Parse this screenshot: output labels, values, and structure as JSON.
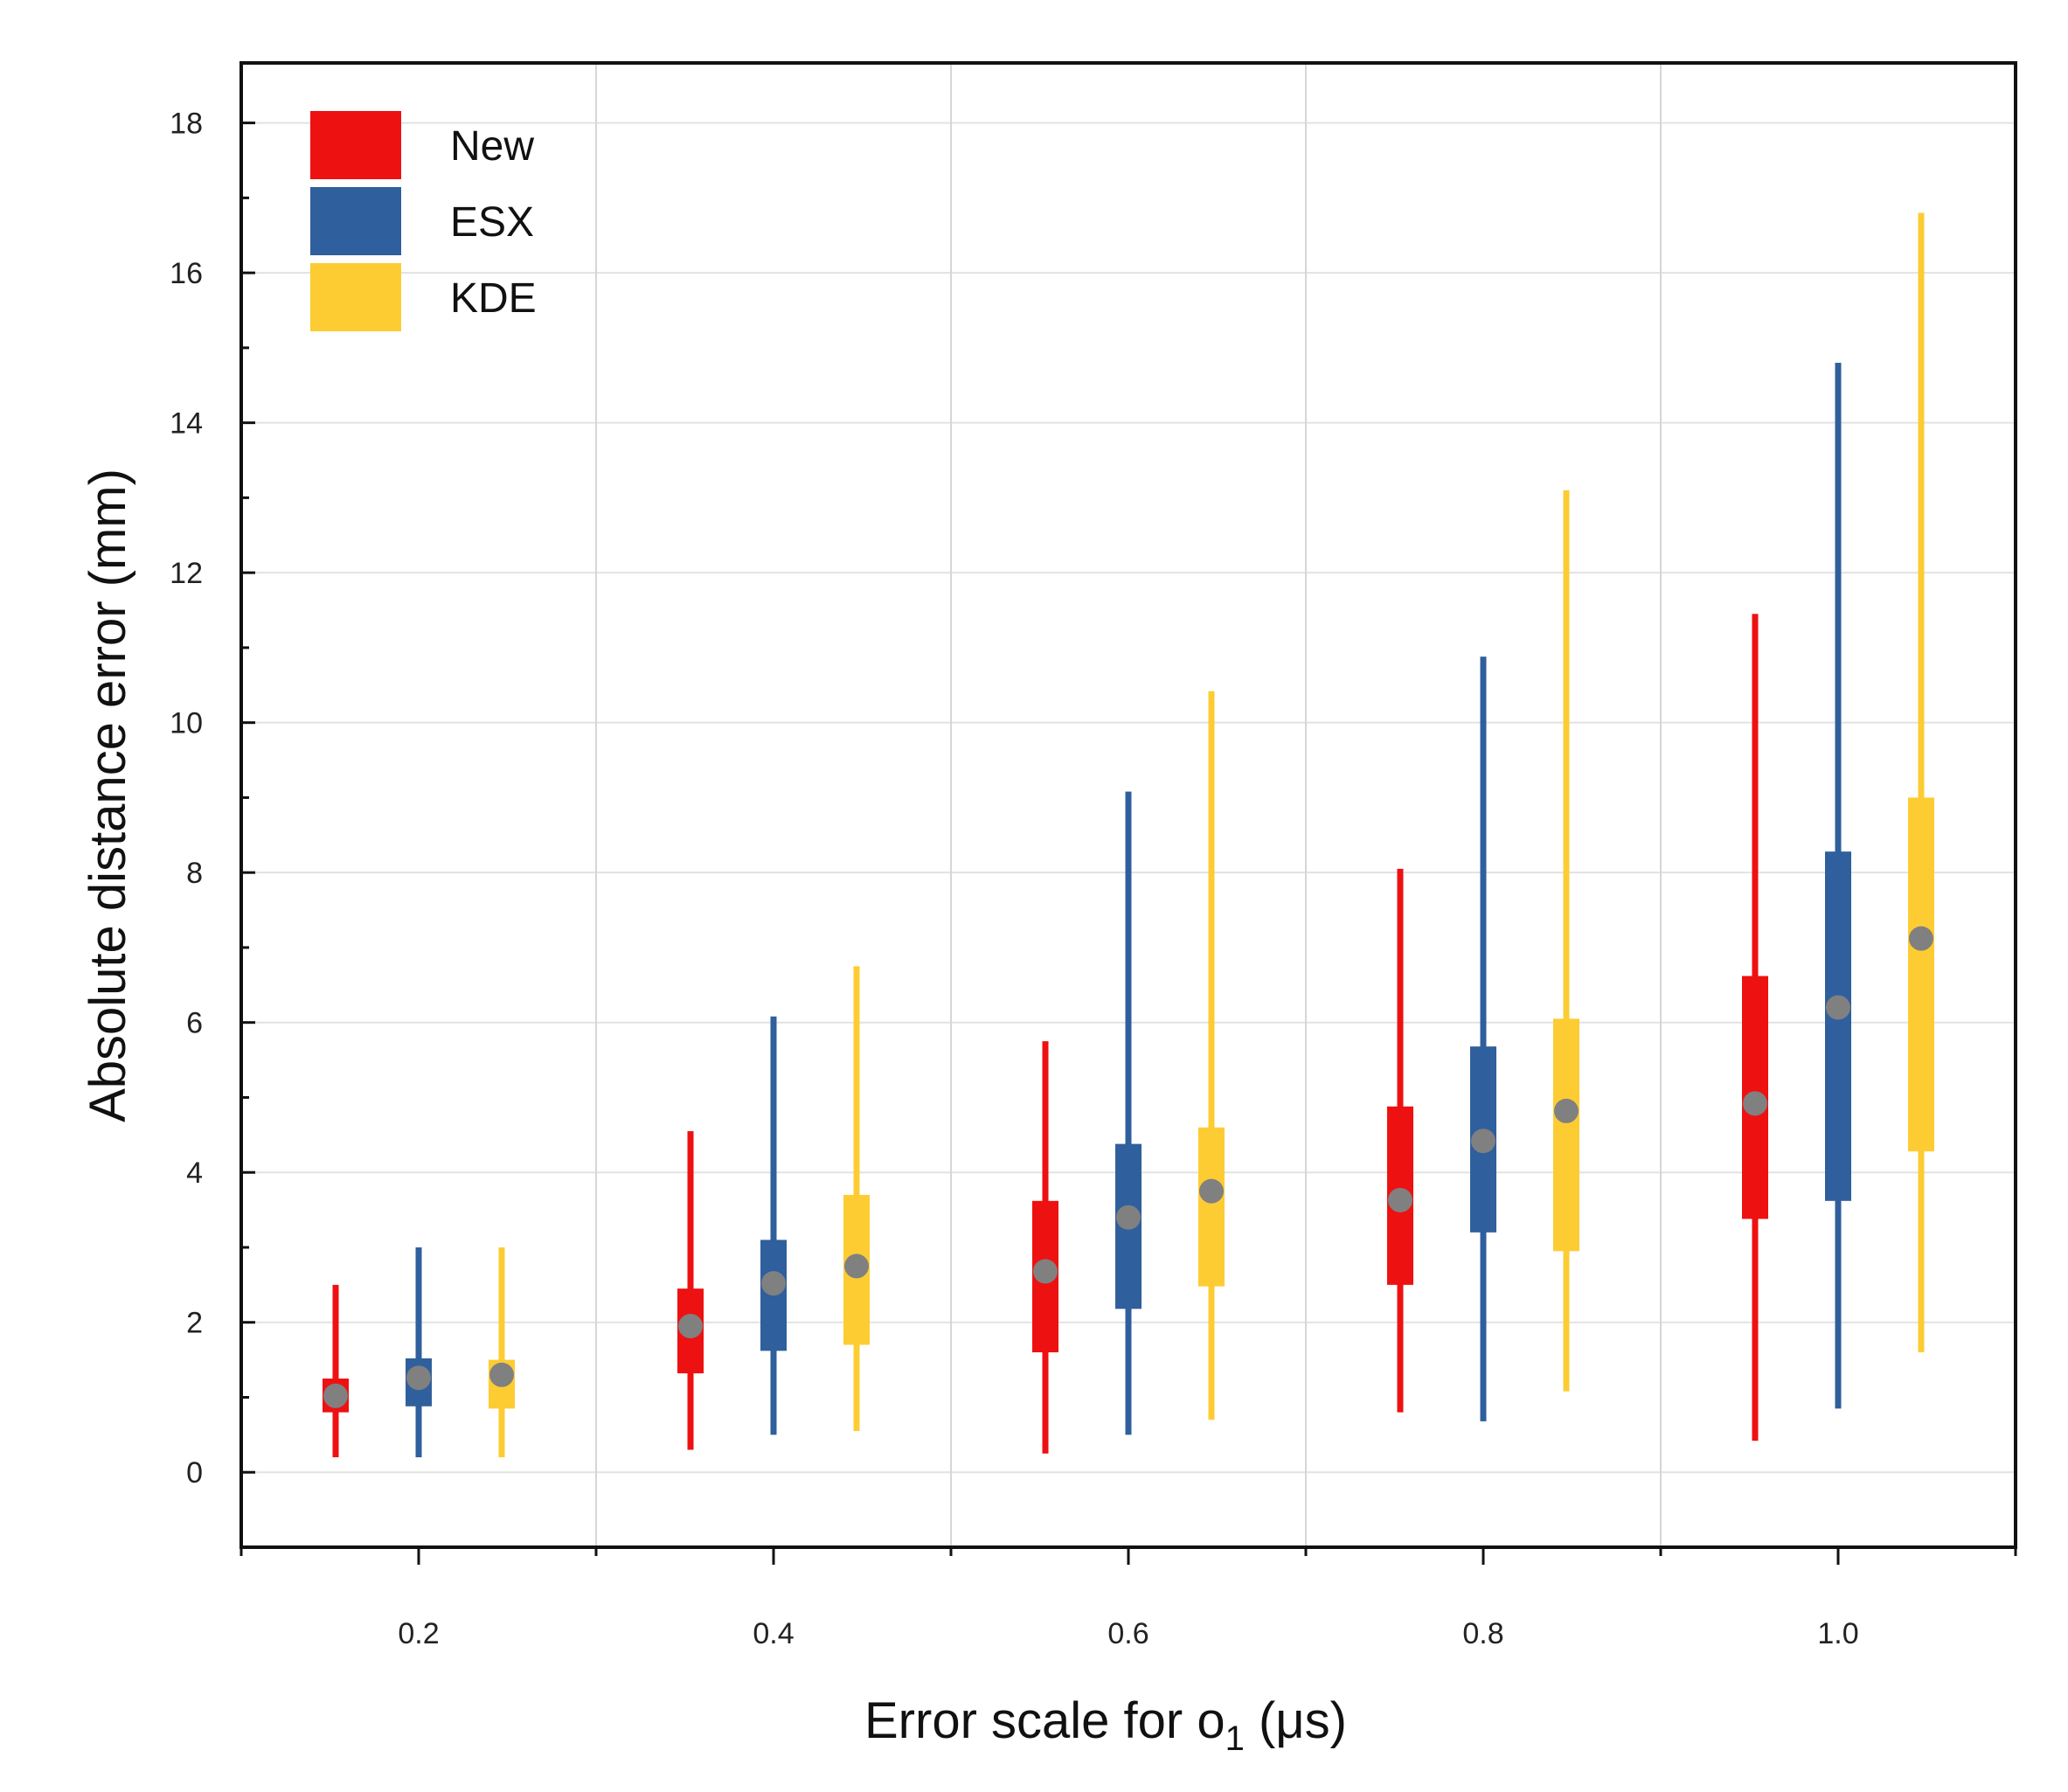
{
  "chart_data": {
    "type": "box",
    "xlabel": "Error scale for o",
    "xlabel_subscript": "1",
    "xlabel_unit": "(μs)",
    "ylabel": "Absolute distance error (mm)",
    "ylim": [
      -1,
      18.8
    ],
    "yticks": [
      0,
      2,
      4,
      6,
      8,
      10,
      12,
      14,
      16,
      18
    ],
    "categories": [
      "0.2",
      "0.4",
      "0.6",
      "0.8",
      "1.0"
    ],
    "grid": true,
    "legend_position": "top-left",
    "series": [
      {
        "name": "New",
        "color": "#ee1111",
        "boxes": [
          {
            "whisker_low": 0.2,
            "q1": 0.8,
            "mean": 1.02,
            "q3": 1.25,
            "whisker_high": 2.5
          },
          {
            "whisker_low": 0.3,
            "q1": 1.32,
            "mean": 1.95,
            "q3": 2.45,
            "whisker_high": 4.55
          },
          {
            "whisker_low": 0.25,
            "q1": 1.6,
            "mean": 2.68,
            "q3": 3.62,
            "whisker_high": 5.75
          },
          {
            "whisker_low": 0.8,
            "q1": 2.5,
            "mean": 3.63,
            "q3": 4.88,
            "whisker_high": 8.05
          },
          {
            "whisker_low": 0.42,
            "q1": 3.38,
            "mean": 4.92,
            "q3": 6.62,
            "whisker_high": 11.45
          }
        ]
      },
      {
        "name": "ESX",
        "color": "#2f5f9c",
        "boxes": [
          {
            "whisker_low": 0.2,
            "q1": 0.88,
            "mean": 1.26,
            "q3": 1.52,
            "whisker_high": 3.0
          },
          {
            "whisker_low": 0.5,
            "q1": 1.62,
            "mean": 2.52,
            "q3": 3.1,
            "whisker_high": 6.08
          },
          {
            "whisker_low": 0.5,
            "q1": 2.18,
            "mean": 3.4,
            "q3": 4.38,
            "whisker_high": 9.08
          },
          {
            "whisker_low": 0.68,
            "q1": 3.2,
            "mean": 4.42,
            "q3": 5.68,
            "whisker_high": 10.88
          },
          {
            "whisker_low": 0.85,
            "q1": 3.62,
            "mean": 6.2,
            "q3": 8.28,
            "whisker_high": 14.8
          }
        ]
      },
      {
        "name": "KDE",
        "color": "#fdcc33",
        "boxes": [
          {
            "whisker_low": 0.2,
            "q1": 0.85,
            "mean": 1.3,
            "q3": 1.5,
            "whisker_high": 3.0
          },
          {
            "whisker_low": 0.55,
            "q1": 1.7,
            "mean": 2.75,
            "q3": 3.7,
            "whisker_high": 6.75
          },
          {
            "whisker_low": 0.7,
            "q1": 2.48,
            "mean": 3.75,
            "q3": 4.6,
            "whisker_high": 10.42
          },
          {
            "whisker_low": 1.08,
            "q1": 2.95,
            "mean": 4.82,
            "q3": 6.05,
            "whisker_high": 13.1
          },
          {
            "whisker_low": 1.6,
            "q1": 4.28,
            "mean": 7.12,
            "q3": 9.0,
            "whisker_high": 16.8
          }
        ]
      }
    ],
    "mean_marker_color": "#808080"
  }
}
